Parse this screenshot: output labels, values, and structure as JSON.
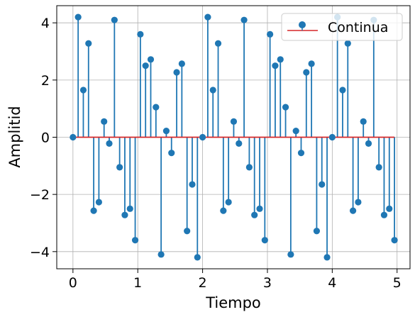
{
  "chart_data": {
    "type": "stem",
    "title": "",
    "xlabel": "Tiempo",
    "ylabel": "Amplitid",
    "xlim": [
      -0.25,
      5.2
    ],
    "ylim": [
      -4.6,
      4.6
    ],
    "xticks": [
      0,
      1,
      2,
      3,
      4,
      5
    ],
    "xtick_labels": [
      "0",
      "1",
      "2",
      "3",
      "4",
      "5"
    ],
    "yticks": [
      -4,
      -2,
      0,
      2,
      4
    ],
    "ytick_labels": [
      "−4",
      "−2",
      "0",
      "2",
      "4"
    ],
    "grid": true,
    "legend": {
      "position": "top-right",
      "entries": [
        "Continua"
      ]
    },
    "baseline": 0,
    "series": [
      {
        "name": "Continua",
        "color": "#1f77b4",
        "baseline_color": "#d62728",
        "x": [
          0,
          0.08,
          0.16,
          0.24,
          0.32,
          0.4,
          0.48,
          0.56,
          0.64,
          0.72,
          0.8,
          0.88,
          0.96,
          1.04,
          1.12,
          1.2,
          1.28,
          1.36,
          1.44,
          1.52,
          1.6,
          1.68,
          1.76,
          1.84,
          1.92,
          2.0,
          2.08,
          2.16,
          2.24,
          2.32,
          2.4,
          2.48,
          2.56,
          2.64,
          2.72,
          2.8,
          2.88,
          2.96,
          3.04,
          3.12,
          3.2,
          3.28,
          3.36,
          3.44,
          3.52,
          3.6,
          3.68,
          3.76,
          3.84,
          3.92,
          4.0,
          4.08,
          4.16,
          4.24,
          4.32,
          4.4,
          4.48,
          4.56,
          4.64,
          4.72,
          4.8,
          4.88,
          4.96
        ],
        "y": [
          0,
          4.2,
          1.65,
          3.28,
          -2.57,
          -2.27,
          0.55,
          -0.22,
          4.1,
          -1.05,
          -2.72,
          -2.5,
          -3.6,
          3.6,
          2.5,
          2.72,
          1.05,
          -4.1,
          0.22,
          -0.55,
          2.27,
          2.57,
          -3.28,
          -1.65,
          -4.2,
          0,
          4.2,
          1.65,
          3.28,
          -2.57,
          -2.27,
          0.55,
          -0.22,
          4.1,
          -1.05,
          -2.72,
          -2.5,
          -3.6,
          3.6,
          2.5,
          2.72,
          1.05,
          -4.1,
          0.22,
          -0.55,
          2.27,
          2.57,
          -3.28,
          -1.65,
          -4.2,
          0,
          4.2,
          1.65,
          3.28,
          -2.57,
          -2.27,
          0.55,
          -0.22,
          4.1,
          -1.05,
          -2.72,
          -2.5,
          -3.6
        ]
      }
    ]
  }
}
